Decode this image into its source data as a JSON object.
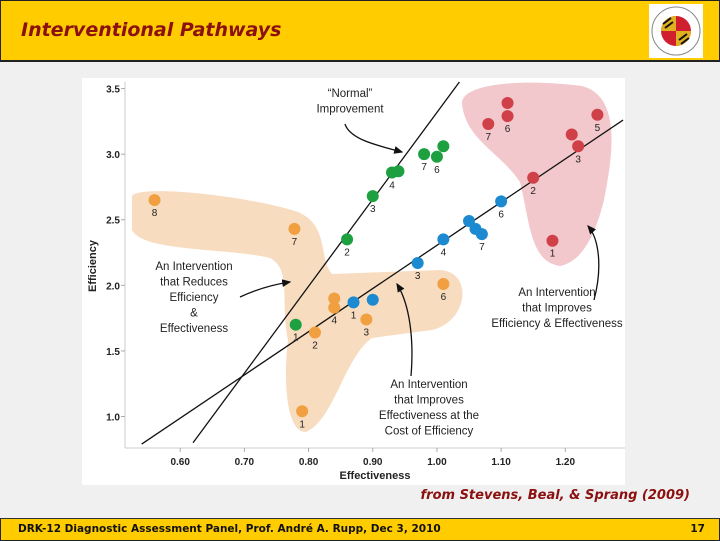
{
  "header": {
    "title": "Interventional Pathways",
    "logo_text": "UNIVERSITY OF MARYLAND 1856"
  },
  "credit": "from Stevens, Beal, & Sprang (2009)",
  "footer": {
    "text": "DRK-12 Diagnostic Assessment Panel, Prof. André A. Rupp, Dec 3, 2010",
    "page": "17"
  },
  "chart_data": {
    "type": "scatter",
    "xlabel": "Effectiveness",
    "ylabel": "Efficiency",
    "xlim": [
      0.514,
      1.293
    ],
    "ylim": [
      0.76,
      3.55
    ],
    "xticks": [
      "0.60",
      "0.70",
      "0.80",
      "0.90",
      "1.00",
      "1.10",
      "1.20"
    ],
    "yticks": [
      "1.0",
      "1.5",
      "2.0",
      "2.5",
      "3.0",
      "3.5"
    ],
    "grid": false,
    "colors": {
      "orange": "#f0a040",
      "green": "#1ea040",
      "blue": "#1c8ad0",
      "red": "#d04048",
      "orange_region": "#f8dcc0",
      "red_region": "#f2c8cc"
    },
    "series": [
      {
        "color": "orange",
        "points": [
          {
            "x": 0.56,
            "y": 2.65,
            "label": "8"
          },
          {
            "x": 0.778,
            "y": 2.43,
            "label": "7"
          },
          {
            "x": 0.84,
            "y": 1.9,
            "label": ""
          },
          {
            "x": 0.84,
            "y": 1.83,
            "label": "4"
          },
          {
            "x": 0.81,
            "y": 1.64,
            "label": "2"
          },
          {
            "x": 0.89,
            "y": 1.74,
            "label": "3"
          },
          {
            "x": 1.01,
            "y": 2.01,
            "label": "6"
          },
          {
            "x": 0.79,
            "y": 1.04,
            "label": "1"
          }
        ]
      },
      {
        "color": "green",
        "points": [
          {
            "x": 0.78,
            "y": 1.7,
            "label": "1"
          },
          {
            "x": 0.86,
            "y": 2.35,
            "label": "2"
          },
          {
            "x": 0.9,
            "y": 2.68,
            "label": "3"
          },
          {
            "x": 0.93,
            "y": 2.86,
            "label": "4"
          },
          {
            "x": 0.94,
            "y": 2.87,
            "label": ""
          },
          {
            "x": 0.98,
            "y": 3.0,
            "label": "7"
          },
          {
            "x": 1.0,
            "y": 2.98,
            "label": "6"
          },
          {
            "x": 1.01,
            "y": 3.06,
            "label": ""
          }
        ]
      },
      {
        "color": "blue",
        "points": [
          {
            "x": 0.87,
            "y": 1.87,
            "label": "1"
          },
          {
            "x": 0.9,
            "y": 1.89,
            "label": ""
          },
          {
            "x": 0.97,
            "y": 2.17,
            "label": "3"
          },
          {
            "x": 1.01,
            "y": 2.35,
            "label": "4"
          },
          {
            "x": 1.05,
            "y": 2.49,
            "label": ""
          },
          {
            "x": 1.06,
            "y": 2.43,
            "label": ""
          },
          {
            "x": 1.07,
            "y": 2.39,
            "label": "7"
          },
          {
            "x": 1.1,
            "y": 2.64,
            "label": "6"
          }
        ]
      },
      {
        "color": "red",
        "points": [
          {
            "x": 1.08,
            "y": 3.23,
            "label": "7"
          },
          {
            "x": 1.11,
            "y": 3.39,
            "label": ""
          },
          {
            "x": 1.11,
            "y": 3.29,
            "label": "6"
          },
          {
            "x": 1.25,
            "y": 3.3,
            "label": "5"
          },
          {
            "x": 1.21,
            "y": 3.15,
            "label": ""
          },
          {
            "x": 1.22,
            "y": 3.06,
            "label": "3"
          },
          {
            "x": 1.15,
            "y": 2.82,
            "label": "2"
          },
          {
            "x": 1.18,
            "y": 2.34,
            "label": "1"
          }
        ]
      }
    ],
    "lines": [
      {
        "from": [
          0.62,
          0.8
        ],
        "to": [
          1.035,
          3.55
        ]
      },
      {
        "from": [
          0.54,
          0.79
        ],
        "to": [
          1.29,
          3.26
        ]
      }
    ],
    "annotations": [
      {
        "lines": [
          "“Normal”",
          "Improvement"
        ]
      },
      {
        "lines": [
          "An Intervention",
          "that Reduces",
          "Efficiency",
          "&",
          "Effectiveness"
        ]
      },
      {
        "lines": [
          "An Intervention",
          "that Improves",
          "Efficiency & Effectiveness"
        ]
      },
      {
        "lines": [
          "An Intervention",
          "that Improves",
          "Effectiveness at the",
          "Cost of Efficiency"
        ]
      }
    ]
  }
}
